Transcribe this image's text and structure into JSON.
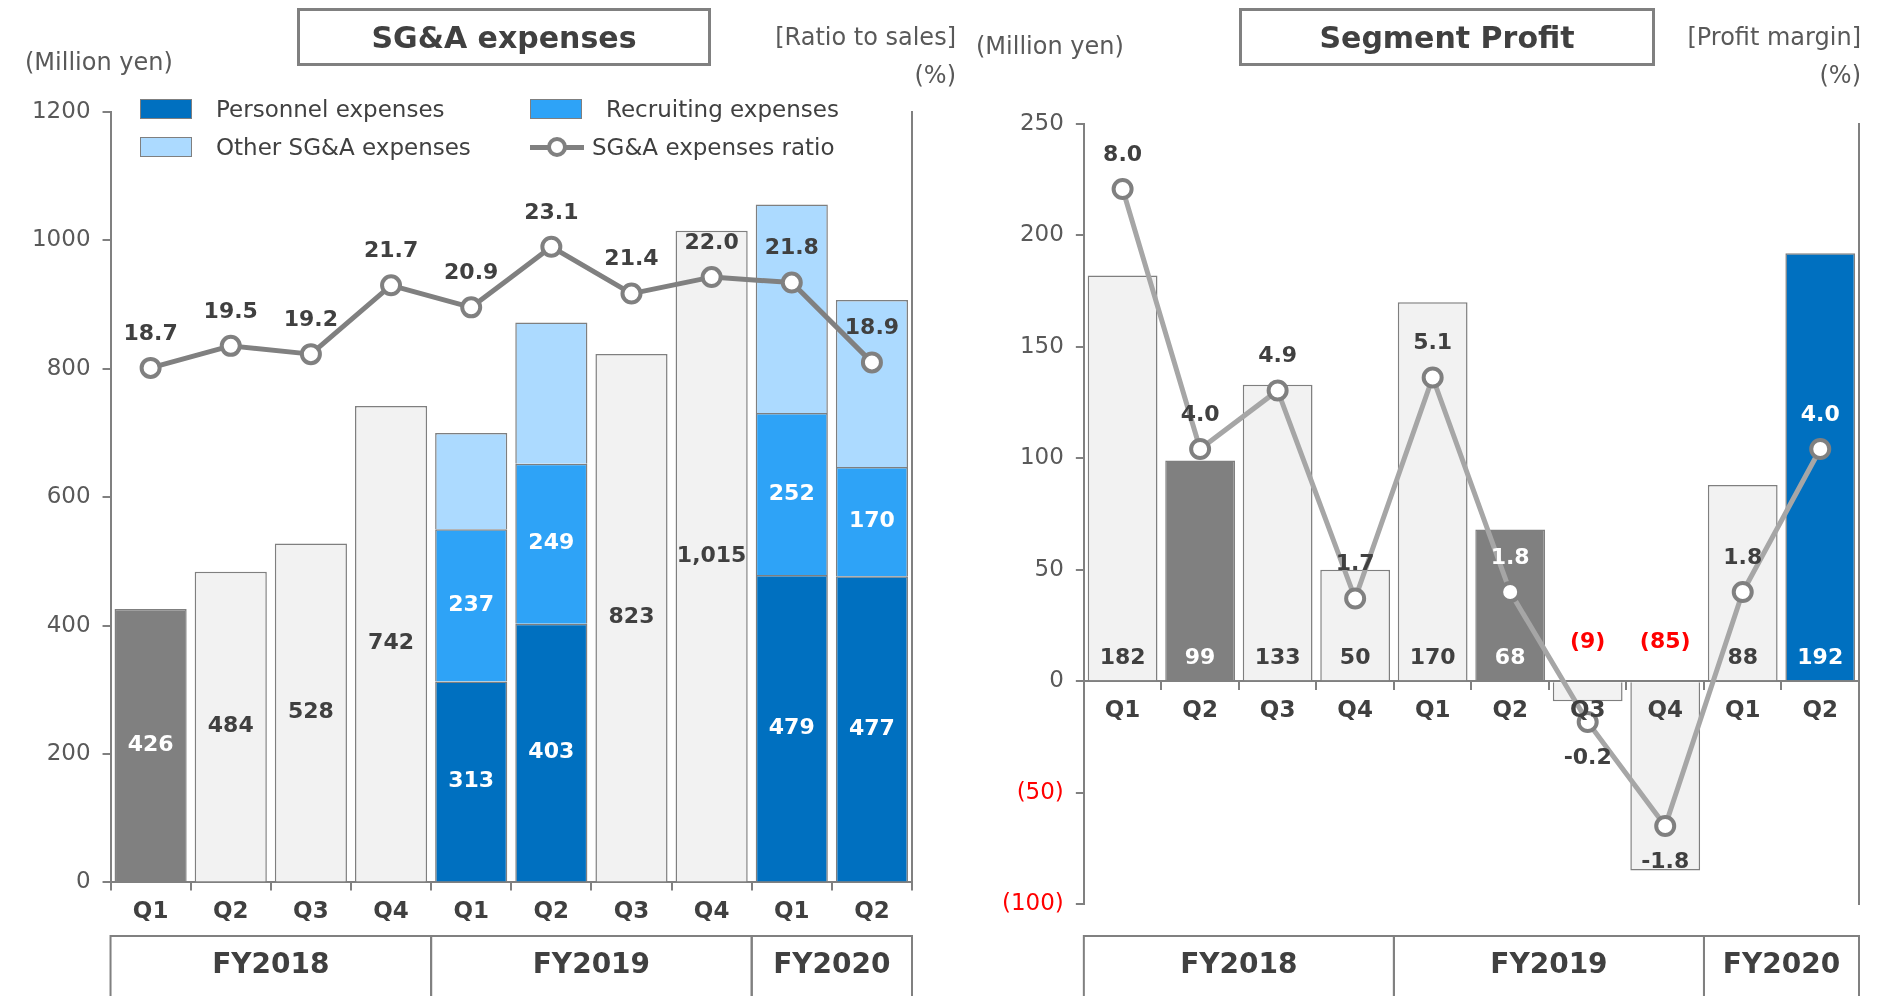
{
  "chart_data": [
    {
      "type": "bar",
      "title": "SG&A expenses",
      "ylabel": "(Million yen)",
      "y2label": "[Ratio to sales] (%)",
      "categories": [
        "Q1",
        "Q2",
        "Q3",
        "Q4",
        "Q1",
        "Q2",
        "Q3",
        "Q4",
        "Q1",
        "Q2"
      ],
      "annotations": [
        "FY2018",
        "FY2019",
        "FY2020"
      ],
      "stacked": true,
      "ylim": [
        0,
        1200
      ],
      "yticks": [
        0,
        200,
        400,
        600,
        800,
        1000,
        1200
      ],
      "y2lim": [
        0,
        28
      ],
      "legend": "top left",
      "marker": "circle",
      "line_style": "solid",
      "series": [
        {
          "colors": [
            "#808080",
            "#f2f2f2",
            "#f2f2f2",
            "#f2f2f2",
            "#f2f2f2",
            "#f2f2f2",
            "#f2f2f2",
            "#f2f2f2",
            "#f2f2f2",
            "#f2f2f2"
          ],
          "values": [
            426,
            484,
            528,
            742,
            null,
            null,
            823,
            1015,
            null,
            null
          ],
          "value_labels": [
            "426",
            "484",
            "528",
            "742",
            null,
            null,
            "823",
            "1,015",
            null,
            null
          ]
        },
        {
          "name": "Personnel expenses",
          "color": "#0070c0",
          "values": [
            null,
            null,
            null,
            null,
            313,
            403,
            null,
            null,
            479,
            477
          ],
          "value_labels": [
            null,
            null,
            null,
            null,
            "313",
            "403",
            null,
            null,
            "479",
            "477"
          ]
        },
        {
          "name": "Recruiting expenses",
          "color": "#2ea3f7",
          "values": [
            null,
            null,
            null,
            null,
            237,
            249,
            null,
            null,
            252,
            170
          ],
          "value_labels": [
            null,
            null,
            null,
            null,
            "237",
            "249",
            null,
            null,
            "252",
            "170"
          ]
        },
        {
          "name": "Other SG&A expenses",
          "color": "#acdaff",
          "values": [
            null,
            null,
            null,
            null,
            150,
            220,
            null,
            null,
            325,
            260
          ]
        },
        {
          "name": "SG&A expenses ratio",
          "type": "line",
          "axis": "y2",
          "color": "#808080",
          "values": [
            18.7,
            19.5,
            19.2,
            21.7,
            20.9,
            23.1,
            21.4,
            22.0,
            21.8,
            18.9
          ],
          "value_labels": [
            "18.7",
            "19.5",
            "19.2",
            "21.7",
            "20.9",
            "23.1",
            "21.4",
            "22.0",
            "21.8",
            "18.9"
          ]
        }
      ]
    },
    {
      "type": "bar",
      "title": "Segment Profit",
      "ylabel": "(Million yen)",
      "y2label": "[Profit margin] (%)",
      "categories": [
        "Q1",
        "Q2",
        "Q3",
        "Q4",
        "Q1",
        "Q2",
        "Q3",
        "Q4",
        "Q1",
        "Q2"
      ],
      "annotations": [
        "FY2018",
        "FY2019",
        "FY2020"
      ],
      "ylim": [
        -100,
        250
      ],
      "yticks": [
        {
          "value": -100,
          "label": "(100)"
        },
        {
          "value": -50,
          "label": "(50)"
        },
        0,
        50,
        100,
        150,
        200,
        250
      ],
      "y2lim": [
        -3,
        9
      ],
      "marker": "circle",
      "line_style": "solid",
      "series": [
        {
          "colors": [
            "#f2f2f2",
            "#808080",
            "#f2f2f2",
            "#f2f2f2",
            "#f2f2f2",
            "#808080",
            "#f2f2f2",
            "#f2f2f2",
            "#f2f2f2",
            "#0070c0"
          ],
          "values": [
            182,
            99,
            133,
            50,
            170,
            68,
            -9,
            -85,
            88,
            192
          ],
          "value_labels": [
            "182",
            "99",
            "133",
            "50",
            "170",
            "68",
            "(9)",
            "(85)",
            "88",
            "192"
          ]
        },
        {
          "type": "line",
          "axis": "y2",
          "color": "#a6a6a6",
          "values": [
            8.0,
            4.0,
            4.9,
            1.7,
            5.1,
            1.8,
            -0.2,
            -1.8,
            1.8,
            4.0
          ],
          "value_labels": [
            "8.0",
            "4.0",
            "4.9",
            "1.7",
            "5.1",
            "1.8",
            "-0.2",
            "-1.8",
            "1.8",
            "4.0"
          ]
        }
      ]
    }
  ]
}
